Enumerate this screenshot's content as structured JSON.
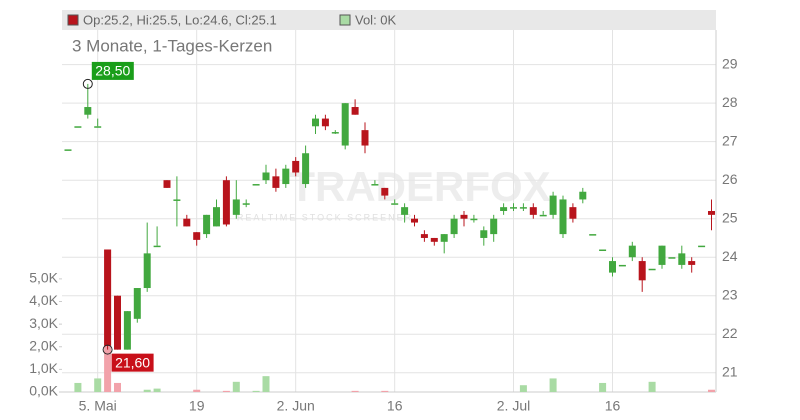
{
  "chart_data": {
    "type": "candlestick",
    "title": "3 Monate, 1-Tages-Kerzen",
    "header": {
      "ohlc": "Op:25.2, Hi:25.5, Lo:24.6, Cl:25.1",
      "volume": "Vol: 0K"
    },
    "watermark": {
      "brand": "TRADERFOX",
      "tagline": "REALTIME STOCK SCREENER"
    },
    "categories": [
      null,
      null,
      null,
      "5. Mai",
      null,
      null,
      null,
      null,
      null,
      null,
      null,
      null,
      null,
      "19",
      null,
      null,
      null,
      null,
      null,
      null,
      null,
      null,
      null,
      "2. Jun",
      null,
      null,
      null,
      null,
      null,
      null,
      null,
      null,
      null,
      "16",
      null,
      null,
      null,
      null,
      null,
      null,
      null,
      null,
      null,
      null,
      null,
      "2. Jul",
      null,
      null,
      null,
      null,
      null,
      null,
      null,
      null,
      null,
      "16",
      null,
      null,
      null,
      null,
      null,
      null,
      null,
      null,
      null,
      null
    ],
    "open": [
      26.8,
      27.4,
      27.7,
      27.4,
      24.2,
      23.0,
      21.6,
      22.4,
      23.2,
      24.3,
      26.0,
      25.5,
      25.0,
      24.65,
      24.6,
      24.8,
      26.0,
      25.1,
      25.4,
      25.9,
      26.0,
      26.1,
      25.9,
      26.5,
      25.9,
      27.4,
      27.6,
      27.25,
      26.9,
      27.9,
      27.3,
      25.9,
      25.8,
      25.4,
      25.1,
      25.0,
      24.6,
      24.5,
      24.4,
      24.6,
      25.1,
      25.0,
      24.5,
      24.6,
      25.2,
      25.3,
      25.3,
      25.3,
      25.1,
      25.1,
      24.6,
      25.3,
      25.5,
      24.6,
      24.2,
      23.6,
      23.8,
      24.0,
      23.9,
      23.7,
      23.8,
      24.0,
      23.8,
      23.9,
      24.3,
      25.2
    ],
    "high": [
      26.8,
      27.4,
      28.5,
      27.6,
      24.2,
      23.0,
      22.6,
      23.2,
      24.9,
      24.8,
      26.0,
      26.1,
      25.1,
      24.65,
      25.1,
      25.5,
      26.1,
      26.0,
      25.5,
      25.9,
      26.4,
      26.3,
      26.4,
      26.6,
      26.9,
      27.7,
      27.7,
      27.3,
      28.0,
      28.1,
      27.5,
      26.0,
      25.8,
      25.5,
      25.4,
      25.1,
      24.7,
      24.5,
      24.6,
      25.1,
      25.2,
      25.1,
      24.8,
      25.1,
      25.4,
      25.4,
      25.4,
      25.4,
      25.2,
      25.7,
      25.6,
      25.4,
      25.8,
      24.6,
      24.2,
      24.0,
      23.8,
      24.4,
      24.0,
      23.7,
      24.3,
      24.0,
      24.3,
      24.0,
      24.3,
      25.5
    ],
    "low": [
      26.8,
      27.4,
      27.6,
      27.4,
      21.6,
      21.6,
      21.6,
      22.3,
      23.1,
      24.3,
      25.8,
      24.8,
      24.8,
      24.3,
      24.5,
      24.8,
      24.8,
      25.0,
      25.3,
      25.9,
      25.9,
      25.7,
      25.8,
      26.1,
      25.8,
      27.2,
      27.3,
      27.2,
      26.8,
      27.7,
      26.7,
      25.9,
      25.5,
      25.4,
      24.9,
      24.8,
      24.4,
      24.3,
      24.1,
      24.5,
      24.8,
      24.9,
      24.3,
      24.4,
      25.1,
      25.2,
      25.2,
      25.0,
      25.1,
      25.0,
      24.5,
      24.9,
      25.4,
      24.6,
      24.2,
      23.5,
      23.8,
      23.9,
      23.1,
      23.7,
      23.7,
      24.0,
      23.7,
      23.6,
      24.3,
      24.7
    ],
    "close": [
      26.8,
      27.4,
      27.9,
      27.4,
      21.7,
      21.6,
      22.6,
      23.2,
      24.1,
      24.3,
      25.8,
      25.5,
      24.8,
      24.45,
      25.1,
      25.3,
      24.85,
      25.5,
      25.4,
      25.9,
      26.2,
      25.8,
      26.3,
      26.2,
      26.7,
      27.6,
      27.4,
      27.25,
      28.0,
      27.7,
      26.9,
      25.9,
      25.6,
      25.4,
      25.3,
      24.9,
      24.5,
      24.4,
      24.6,
      25.0,
      25.0,
      25.0,
      24.7,
      25.0,
      25.3,
      25.3,
      25.3,
      25.1,
      25.1,
      25.6,
      25.5,
      25.0,
      25.7,
      24.6,
      24.2,
      23.9,
      23.8,
      24.3,
      23.4,
      23.7,
      24.3,
      24.0,
      24.1,
      23.8,
      24.3,
      25.1
    ],
    "volume": [
      0,
      0.4,
      0,
      0.6,
      6.3,
      0.4,
      0,
      0,
      0.1,
      0.15,
      0,
      0,
      0,
      0.1,
      0,
      0,
      0.05,
      0.45,
      0,
      0.05,
      0.7,
      0,
      0,
      0,
      0,
      0,
      0,
      0,
      0,
      0.05,
      0,
      0,
      0.05,
      0,
      0,
      0,
      0,
      0,
      0,
      0,
      0,
      0,
      0,
      0,
      0,
      0,
      0.3,
      0,
      0,
      0.6,
      0,
      0,
      0,
      0,
      0.4,
      0,
      0,
      0,
      0,
      0.45,
      0,
      0,
      0,
      0,
      0,
      0.1
    ],
    "up_color": "#42a83f",
    "down_color": "#b8141c",
    "up_volume_color": "#a9dba4",
    "down_volume_color": "#f2a2aa",
    "ylim": [
      20.5,
      29.9
    ],
    "yticks": [
      21,
      22,
      23,
      24,
      25,
      26,
      27,
      28,
      29
    ],
    "y2lim": [
      0,
      16
    ],
    "y2ticks": [
      {
        "value": 0,
        "label": "0,0K"
      },
      {
        "value": 1,
        "label": "1,0K"
      },
      {
        "value": 2,
        "label": "2,0K"
      },
      {
        "value": 3,
        "label": "3,0K"
      },
      {
        "value": 4,
        "label": "4,0K"
      },
      {
        "value": 5,
        "label": "5,0K"
      }
    ],
    "grid": true,
    "annotations": [
      {
        "label": "28,50",
        "value": 28.5,
        "color": "#1a9e1a"
      },
      {
        "label": "21,60",
        "value": 21.6,
        "color": "#c8101a"
      }
    ]
  }
}
